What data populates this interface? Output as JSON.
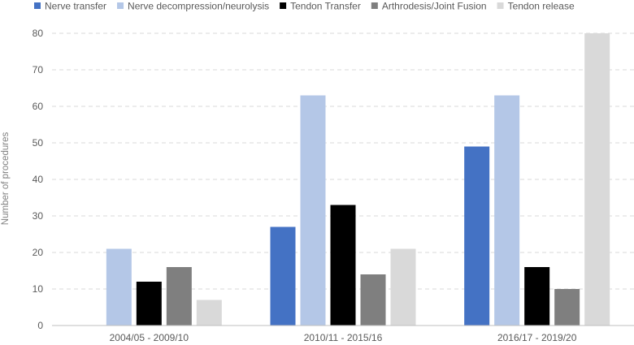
{
  "chart_data": {
    "type": "bar",
    "title": "",
    "xlabel": "",
    "ylabel": "Number of procedures",
    "ylim": [
      0,
      80
    ],
    "yticks": [
      0,
      10,
      20,
      30,
      40,
      50,
      60,
      70,
      80
    ],
    "grid": true,
    "legend_position": "top",
    "categories": [
      "2004/05 - 2009/10",
      "2010/11 - 2015/16",
      "2016/17 - 2019/20"
    ],
    "series": [
      {
        "name": "Nerve transfer",
        "color": "#4472c4",
        "values": [
          0,
          27,
          49
        ]
      },
      {
        "name": "Nerve decompression/neurolysis",
        "color": "#b4c7e7",
        "values": [
          21,
          63,
          63
        ]
      },
      {
        "name": "Tendon Transfer",
        "color": "#000000",
        "values": [
          12,
          33,
          16
        ]
      },
      {
        "name": "Arthrodesis/Joint Fusion",
        "color": "#7f7f7f",
        "values": [
          16,
          14,
          10
        ]
      },
      {
        "name": "Tendon release",
        "color": "#d9d9d9",
        "values": [
          7,
          21,
          80
        ]
      }
    ]
  }
}
